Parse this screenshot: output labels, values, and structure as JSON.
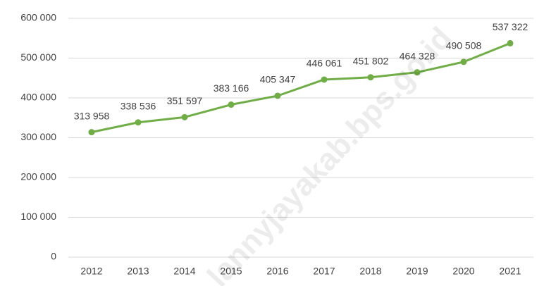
{
  "chart_data": {
    "type": "line",
    "categories": [
      "2012",
      "2013",
      "2014",
      "2015",
      "2016",
      "2017",
      "2018",
      "2019",
      "2020",
      "2021"
    ],
    "series": [
      {
        "color": "#70ad47",
        "values": [
          313958,
          338536,
          351597,
          383166,
          405347,
          446061,
          451802,
          464328,
          490508,
          537322
        ],
        "value_labels": [
          "313 958",
          "338 536",
          "351 597",
          "383 166",
          "405 347",
          "446 061",
          "451 802",
          "464 328",
          "490 508",
          "537 322"
        ]
      }
    ],
    "ylim": [
      0,
      600000
    ],
    "yticks": [
      0,
      {
        "value": 100000,
        "label": "100 000"
      },
      {
        "value": 200000,
        "label": "200 000"
      },
      {
        "value": 300000,
        "label": "300 000"
      },
      {
        "value": 400000,
        "label": "400 000"
      },
      {
        "value": 500000,
        "label": "500 000"
      },
      {
        "value": 600000,
        "label": "600 000"
      }
    ],
    "grid": true,
    "watermark": "lannyjayakab.bps.go.id"
  }
}
